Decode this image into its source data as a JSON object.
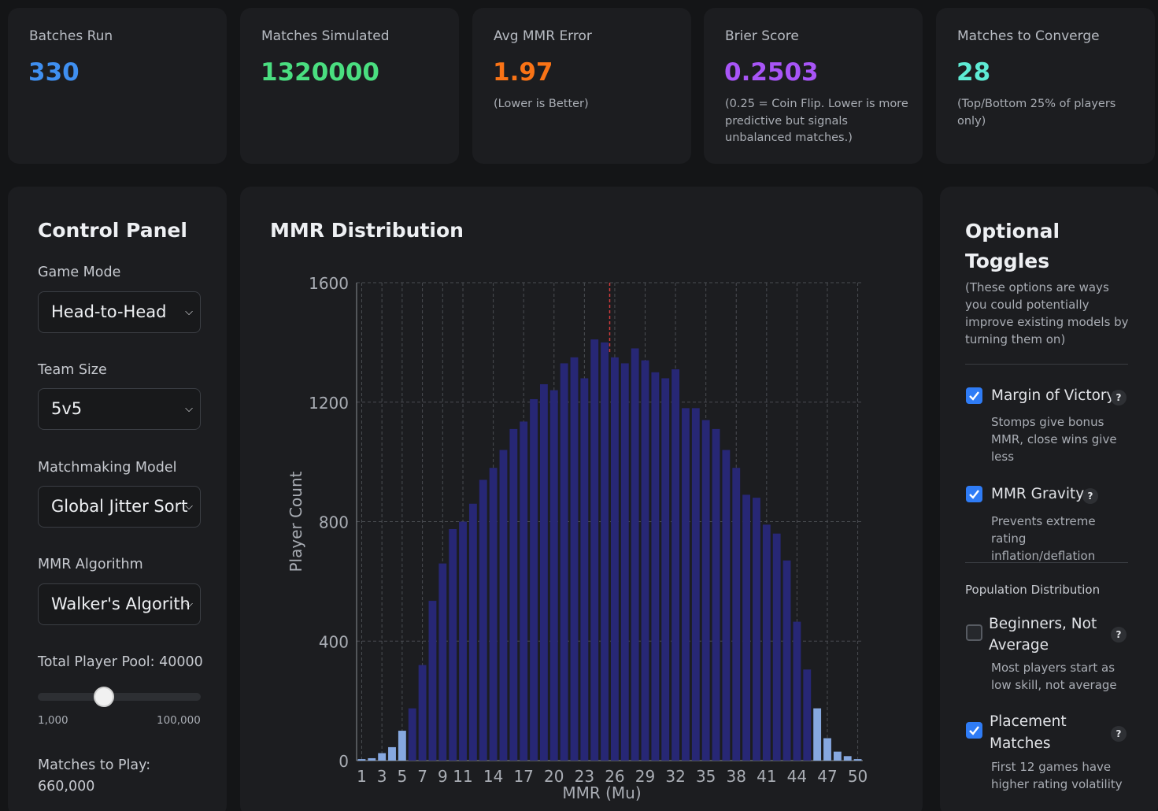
{
  "stats": [
    {
      "label": "Batches Run",
      "value": "330",
      "color": "#3f8ff0",
      "note": ""
    },
    {
      "label": "Matches Simulated",
      "value": "1320000",
      "color": "#4ade80",
      "note": ""
    },
    {
      "label": "Avg MMR Error",
      "value": "1.97",
      "color": "#f97316",
      "note": "(Lower is Better)"
    },
    {
      "label": "Brier Score",
      "value": "0.2503",
      "color": "#a855f7",
      "note": "(0.25 = Coin Flip. Lower is more predictive but signals unbalanced matches.)"
    },
    {
      "label": "Matches to Converge",
      "value": "28",
      "color": "#5eead4",
      "note": "(Top/Bottom 25% of players only)"
    }
  ],
  "control_panel": {
    "title": "Control Panel",
    "game_mode": {
      "label": "Game Mode",
      "value": "Head-to-Head"
    },
    "team_size": {
      "label": "Team Size",
      "value": "5v5"
    },
    "matchmaking_model": {
      "label": "Matchmaking Model",
      "value": "Global Jitter Sort"
    },
    "mmr_algorithm": {
      "label": "MMR Algorithm",
      "value": "Walker's Algorith"
    },
    "player_pool": {
      "label": "Total Player Pool: 40000",
      "value": 40000,
      "min_label": "1,000",
      "max_label": "100,000"
    },
    "matches_to_play": {
      "label": "Matches to Play:",
      "value": "660,000"
    }
  },
  "chart_panel": {
    "title": "MMR Distribution"
  },
  "chart_data": {
    "type": "bar",
    "title": "MMR Distribution",
    "xlabel": "MMR (Mu)",
    "ylabel": "Player Count",
    "xlim": [
      0,
      50
    ],
    "ylim": [
      0,
      1600
    ],
    "yticks": [
      "0",
      "400",
      "800",
      "1200",
      "1600"
    ],
    "xticks": [
      "1",
      "3",
      "5",
      "7",
      "9",
      "11",
      "14",
      "17",
      "20",
      "23",
      "26",
      "29",
      "32",
      "35",
      "38",
      "41",
      "44",
      "47",
      "50"
    ],
    "bin_starts": [
      0,
      1,
      2,
      3,
      4,
      5,
      6,
      7,
      8,
      9,
      10,
      11,
      12,
      13,
      14,
      15,
      16,
      17,
      18,
      19,
      20,
      21,
      22,
      23,
      24,
      25,
      26,
      27,
      28,
      29,
      30,
      31,
      32,
      33,
      34,
      35,
      36,
      37,
      38,
      39,
      40,
      41,
      42,
      43,
      44,
      45,
      46,
      47,
      48,
      49
    ],
    "values": [
      5,
      8,
      25,
      45,
      100,
      175,
      320,
      535,
      660,
      775,
      800,
      860,
      940,
      980,
      1040,
      1110,
      1135,
      1210,
      1260,
      1240,
      1330,
      1350,
      1280,
      1410,
      1400,
      1350,
      1330,
      1380,
      1340,
      1300,
      1280,
      1310,
      1180,
      1180,
      1140,
      1110,
      1040,
      980,
      890,
      880,
      790,
      760,
      670,
      465,
      305,
      175,
      75,
      30,
      15,
      5
    ],
    "light_color": "#86a8e0",
    "dark_color": "#272775",
    "reference_line_x": 25,
    "reference_line_color": "#d23c3c",
    "grid": true
  },
  "toggles_panel": {
    "title": "Optional Toggles",
    "subtitle": "(These options are ways you could potentially improve existing models by turning them on)",
    "margin_of_victory": {
      "label": "Margin of Victory",
      "desc": "Stomps give bonus MMR, close wins give less",
      "checked": true
    },
    "mmr_gravity": {
      "label": "MMR Gravity",
      "desc": "Prevents extreme rating inflation/deflation",
      "checked": true
    },
    "population_heading": "Population Distribution",
    "beginners": {
      "label": "Beginners, Not Average",
      "desc": "Most players start as low skill, not average",
      "checked": false
    },
    "placement": {
      "label": "Placement Matches",
      "desc": "First 12 games have higher rating volatility",
      "checked": true
    },
    "help_glyph": "?"
  }
}
